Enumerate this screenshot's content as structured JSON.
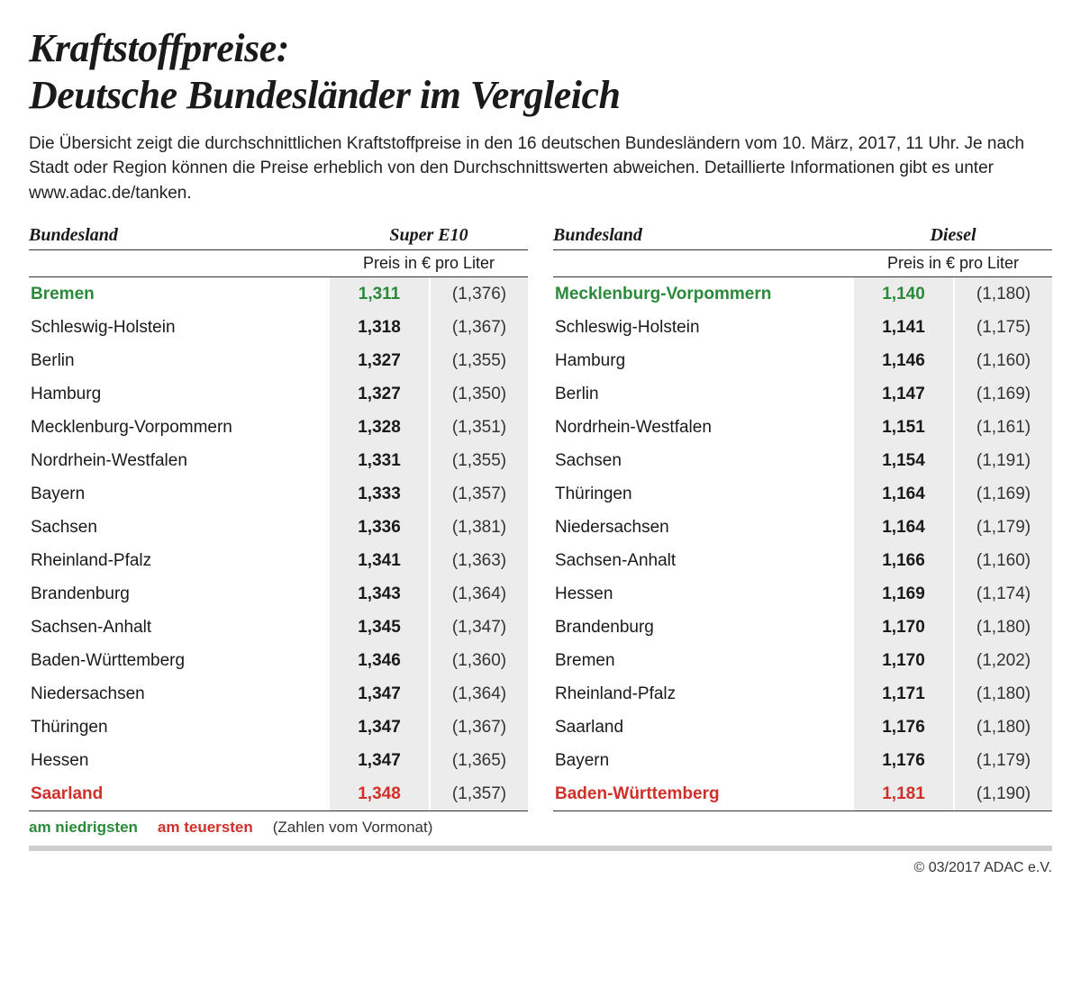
{
  "title_line1": "Kraftstoffpreise:",
  "title_line2": "Deutsche Bundesländer im Vergleich",
  "subtitle": "Die Übersicht zeigt die durchschnittlichen Kraftstoffpreise in den 16 deutschen Bundesländern vom 10. März, 2017, 11 Uhr. Je nach Stadt oder Region können die Preise erheblich von den Durchschnittswerten abweichen. Detaillierte Informationen gibt es unter www.adac.de/tanken.",
  "col_state": "Bundesland",
  "col_price_unit": "Preis in € pro Liter",
  "colors": {
    "low": "#2a8a3a",
    "high": "#d0302a",
    "cell_bg": "#ececec",
    "rule": "#cfcfcf",
    "text": "#1a1a1a"
  },
  "legend": {
    "low": "am niedrigsten",
    "high": "am teuersten",
    "note": "(Zahlen vom Vormonat)"
  },
  "copyright": "© 03/2017 ADAC e.V.",
  "tables": [
    {
      "fuel": "Super E10",
      "rows": [
        {
          "state": "Bremen",
          "price": "1,311",
          "prev": "(1,376)",
          "flag": "low"
        },
        {
          "state": "Schleswig-Holstein",
          "price": "1,318",
          "prev": "(1,367)"
        },
        {
          "state": "Berlin",
          "price": "1,327",
          "prev": "(1,355)"
        },
        {
          "state": "Hamburg",
          "price": "1,327",
          "prev": "(1,350)"
        },
        {
          "state": "Mecklenburg-Vorpommern",
          "price": "1,328",
          "prev": "(1,351)"
        },
        {
          "state": "Nordrhein-Westfalen",
          "price": "1,331",
          "prev": "(1,355)"
        },
        {
          "state": "Bayern",
          "price": "1,333",
          "prev": "(1,357)"
        },
        {
          "state": "Sachsen",
          "price": "1,336",
          "prev": "(1,381)"
        },
        {
          "state": "Rheinland-Pfalz",
          "price": "1,341",
          "prev": "(1,363)"
        },
        {
          "state": "Brandenburg",
          "price": "1,343",
          "prev": "(1,364)"
        },
        {
          "state": "Sachsen-Anhalt",
          "price": "1,345",
          "prev": "(1,347)"
        },
        {
          "state": "Baden-Württemberg",
          "price": "1,346",
          "prev": "(1,360)"
        },
        {
          "state": "Niedersachsen",
          "price": "1,347",
          "prev": "(1,364)"
        },
        {
          "state": "Thüringen",
          "price": "1,347",
          "prev": "(1,367)"
        },
        {
          "state": "Hessen",
          "price": "1,347",
          "prev": "(1,365)"
        },
        {
          "state": "Saarland",
          "price": "1,348",
          "prev": "(1,357)",
          "flag": "high"
        }
      ]
    },
    {
      "fuel": "Diesel",
      "rows": [
        {
          "state": "Mecklenburg-Vorpommern",
          "price": "1,140",
          "prev": "(1,180)",
          "flag": "low"
        },
        {
          "state": "Schleswig-Holstein",
          "price": "1,141",
          "prev": "(1,175)"
        },
        {
          "state": "Hamburg",
          "price": "1,146",
          "prev": "(1,160)"
        },
        {
          "state": "Berlin",
          "price": "1,147",
          "prev": "(1,169)"
        },
        {
          "state": "Nordrhein-Westfalen",
          "price": "1,151",
          "prev": "(1,161)"
        },
        {
          "state": "Sachsen",
          "price": "1,154",
          "prev": "(1,191)"
        },
        {
          "state": "Thüringen",
          "price": "1,164",
          "prev": "(1,169)"
        },
        {
          "state": "Niedersachsen",
          "price": "1,164",
          "prev": "(1,179)"
        },
        {
          "state": "Sachsen-Anhalt",
          "price": "1,166",
          "prev": "(1,160)"
        },
        {
          "state": "Hessen",
          "price": "1,169",
          "prev": "(1,174)"
        },
        {
          "state": "Brandenburg",
          "price": "1,170",
          "prev": "(1,180)"
        },
        {
          "state": "Bremen",
          "price": "1,170",
          "prev": "(1,202)"
        },
        {
          "state": "Rheinland-Pfalz",
          "price": "1,171",
          "prev": "(1,180)"
        },
        {
          "state": "Saarland",
          "price": "1,176",
          "prev": "(1,180)"
        },
        {
          "state": "Bayern",
          "price": "1,176",
          "prev": "(1,179)"
        },
        {
          "state": "Baden-Württemberg",
          "price": "1,181",
          "prev": "(1,190)",
          "flag": "high"
        }
      ]
    }
  ]
}
